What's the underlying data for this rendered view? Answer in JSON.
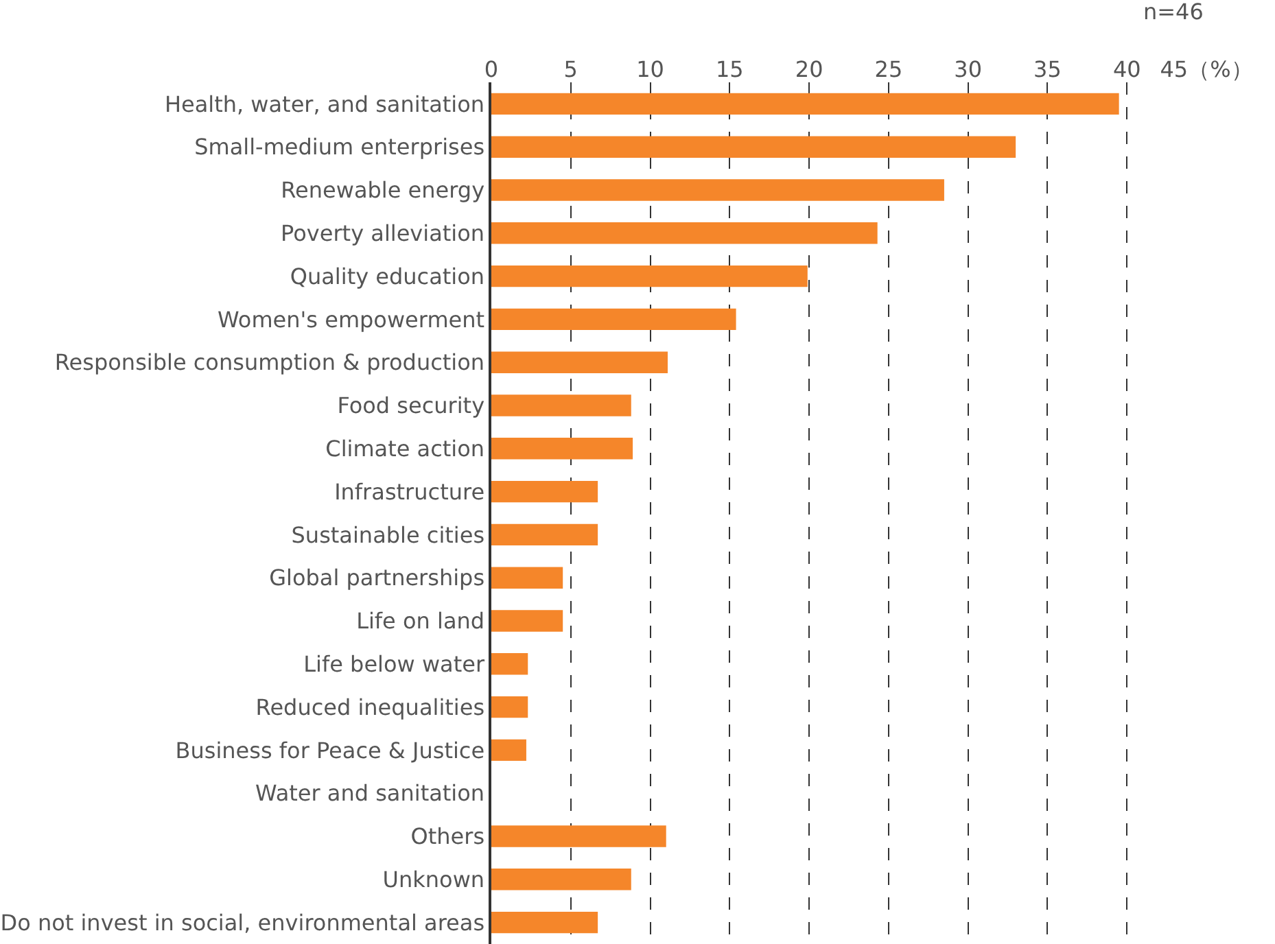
{
  "chart_data": {
    "type": "bar",
    "orientation": "horizontal",
    "categories": [
      "Health, water, and sanitation",
      "Small-medium enterprises",
      "Renewable energy",
      "Poverty alleviation",
      "Quality education",
      "Women's empowerment",
      "Responsible consumption & production",
      "Food security",
      "Climate action",
      "Infrastructure",
      "Sustainable cities",
      "Global partnerships",
      "Life on land",
      "Life below water",
      "Reduced inequalities",
      "Business for Peace & Justice",
      "Water and sanitation",
      "Others",
      "Unknown",
      "Do not invest in social, environmental areas"
    ],
    "values": [
      39.5,
      33,
      28.5,
      24.3,
      19.9,
      15.4,
      11.1,
      8.8,
      8.9,
      6.7,
      6.7,
      4.5,
      4.5,
      2.3,
      2.3,
      2.2,
      0,
      11,
      8.8,
      6.7
    ],
    "color": "#f5862a",
    "xlim": [
      0,
      45
    ],
    "xticks": [
      0,
      5,
      10,
      15,
      20,
      25,
      30,
      35,
      40,
      {
        "value": 45,
        "label": "45（%）"
      }
    ],
    "grid": "x",
    "annotations": [
      "n=46"
    ]
  }
}
